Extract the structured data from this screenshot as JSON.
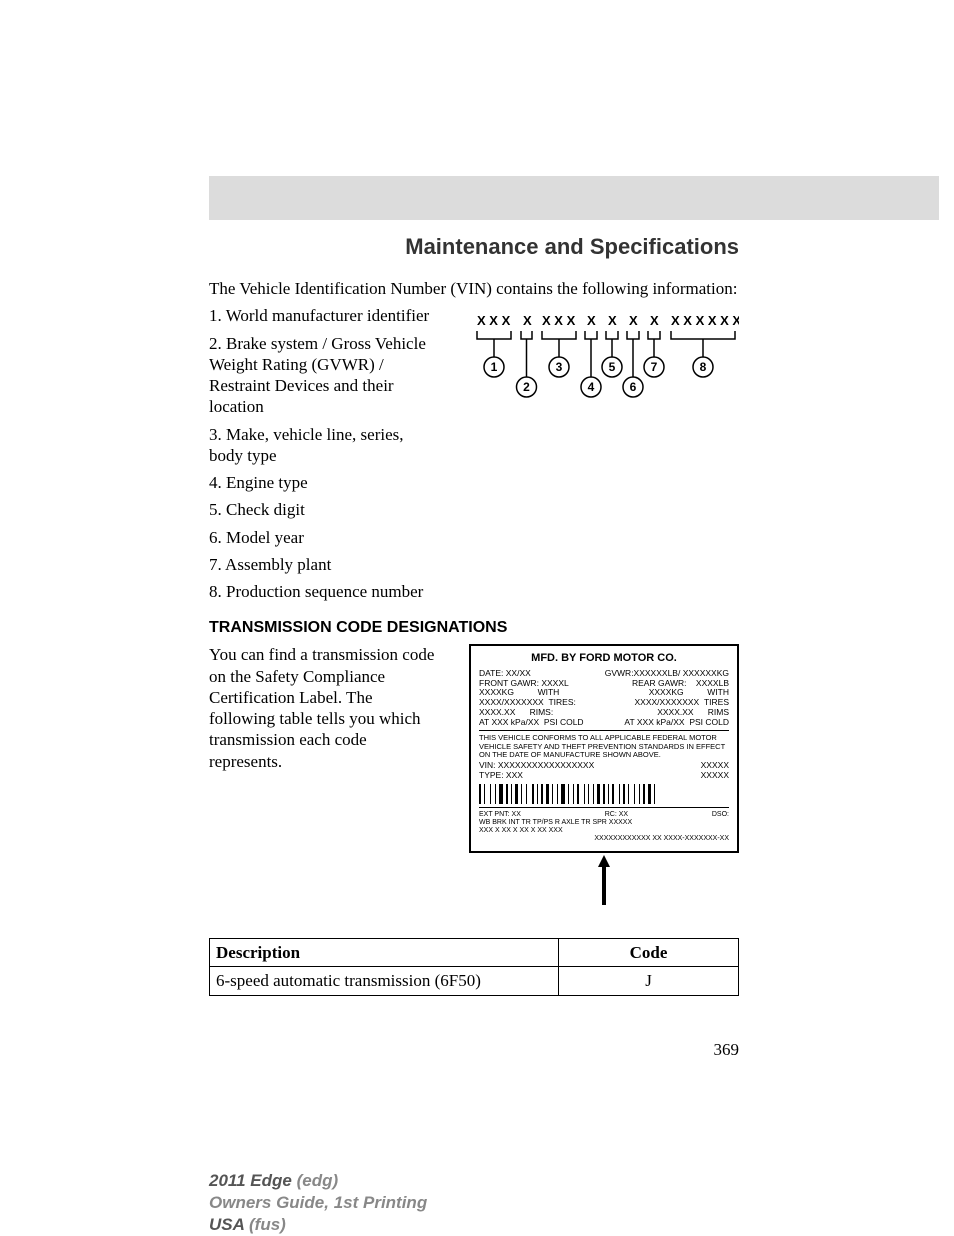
{
  "section_title": "Maintenance and Specifications",
  "intro": "The Vehicle Identification Number (VIN) contains the following information:",
  "vin_items": [
    "1. World manufacturer identifier",
    "2. Brake system / Gross Vehicle Weight Rating (GVWR) / Restraint Devices and their location",
    "3. Make, vehicle line, series, body type",
    "4. Engine type",
    "5. Check digit",
    "6. Model year",
    "7. Assembly plant",
    "8. Production sequence number"
  ],
  "subheading": "TRANSMISSION CODE DESIGNATIONS",
  "tx_text": "You can find a transmission code on the Safety Compliance Certification Label. The following table tells you which transmission each code represents.",
  "vin_pattern": [
    "X X X",
    "X",
    "X X X",
    "X",
    "X",
    "X",
    "X",
    "X X X X X X"
  ],
  "vin_callouts": [
    "1",
    "2",
    "3",
    "4",
    "5",
    "6",
    "7",
    "8"
  ],
  "label": {
    "title": "MFD. BY FORD MOTOR CO.",
    "date": "DATE: XX/XX",
    "gvwr": "GVWR:XXXXXXLB/ XXXXXXKG",
    "front_gawr": "FRONT GAWR: XXXXL",
    "rear_gawr": "REAR GAWR:",
    "rear_gawr_v": "XXXXLB",
    "kg_l": "XXXXKG",
    "with_l": "WITH",
    "kg_r": "XXXXKG",
    "with_r": "WITH",
    "tires_l": "XXXX/XXXXXXX",
    "tires_lbl": "TIRES:",
    "tires_r": "XXXX/XXXXXXX",
    "tires_rbl": "TIRES",
    "rims_l": "XXXX.XX",
    "rims_lbl": "RIMS:",
    "rims_r": "XXXX.XX",
    "rims_rbl": "RIMS",
    "at": "AT  XXX  kPa/XX",
    "psi_l": "PSI COLD",
    "at_r": "AT  XXX  kPa/XX",
    "psi_r": "PSI COLD",
    "conform": "THIS VEHICLE CONFORMS TO ALL APPLICABLE FEDERAL MOTOR VEHICLE SAFETY AND THEFT PREVENTION STANDARDS IN EFFECT ON THE DATE OF MANUFACTURE SHOWN ABOVE.",
    "vin": "VIN:   XXXXXXXXXXXXXXXXX",
    "vin_right1": "XXXXX",
    "vin_right2": "XXXXX",
    "type": "TYPE:  XXX",
    "ext_pnt": "EXT PNT:      XX",
    "rc": "RC: XX",
    "dso": "DSO:",
    "bottom_labels": "WB   BRK   INT TR   TP/PS    R     AXLE    TR   SPR     XXXXX",
    "bottom_vals": "XXX   X         XX           X       XX     X  XX      XXX",
    "bottom_right": "XXXXXXXXXXXX  XX     XXXX-XXXXXXX-XX"
  },
  "table": {
    "headers": [
      "Description",
      "Code"
    ],
    "rows": [
      [
        "6-speed automatic transmission (6F50)",
        "J"
      ]
    ]
  },
  "page_number": "369",
  "footer": {
    "line1_a": "2011 Edge ",
    "line1_b": "(edg)",
    "line2": "Owners Guide, 1st Printing",
    "line3_a": "USA ",
    "line3_b": "(fus)"
  },
  "styling": {
    "header_bg": "#dcdcdc",
    "title_color": "#333333",
    "footer_gray": "#888888",
    "footer_dark": "#555555",
    "body_font": "Georgia, Times New Roman, serif",
    "heading_font": "Arial, Helvetica, sans-serif"
  }
}
